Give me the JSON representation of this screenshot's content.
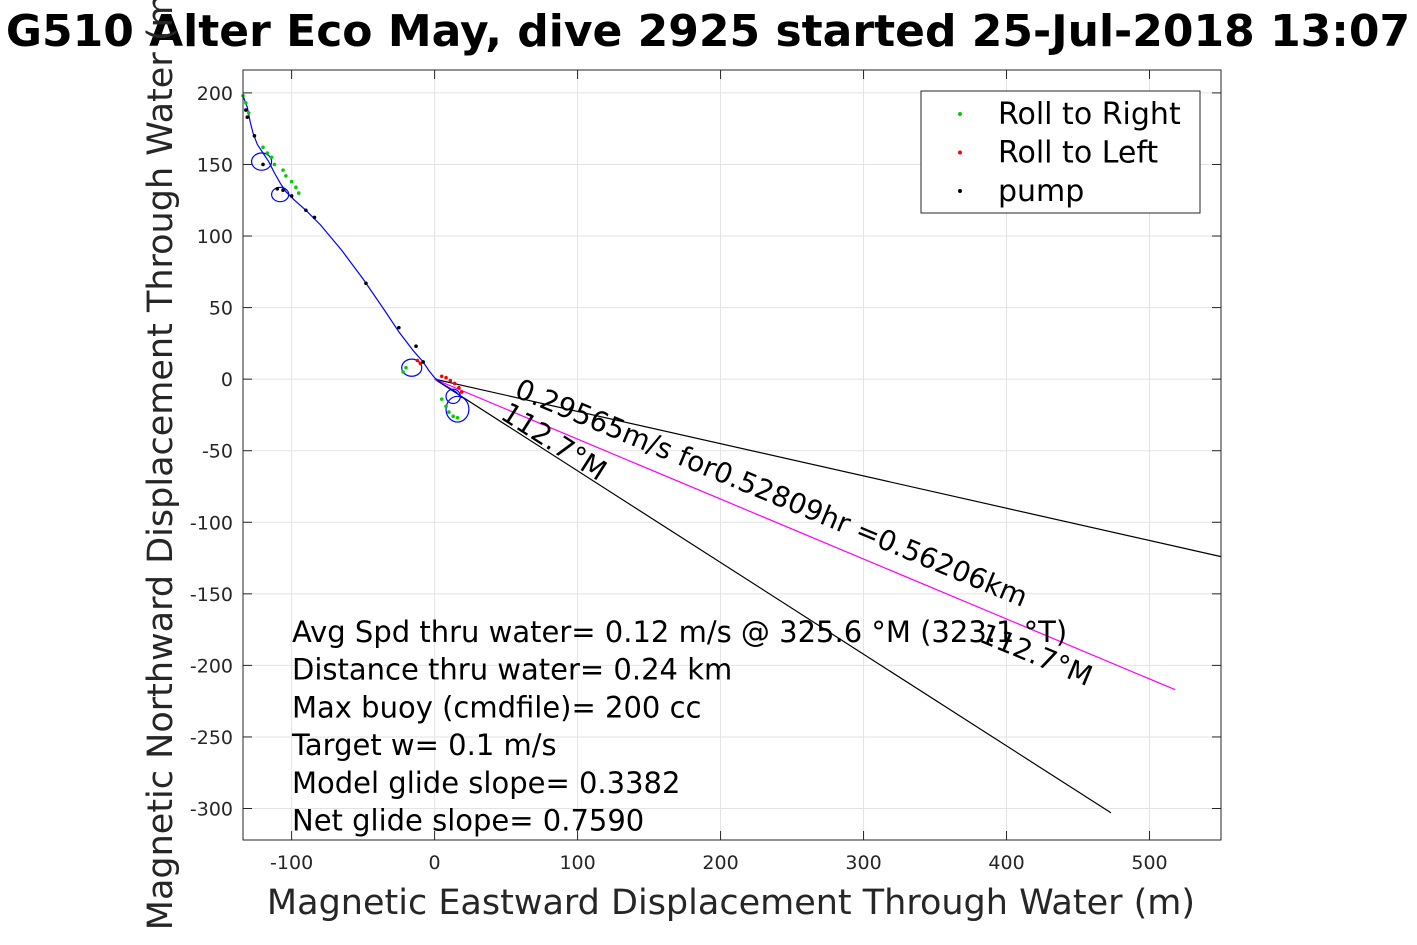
{
  "chart_data": {
    "type": "line",
    "title": "G510 Alter Eco May, dive 2925 started 25-Jul-2018 13:07",
    "xlabel": "Magnetic Eastward Displacement Through Water (m)",
    "ylabel": "Magnetic Northward Displacement Through Water (m)",
    "xlim": [
      -134,
      550
    ],
    "ylim": [
      -322,
      216
    ],
    "xticks": [
      -100,
      0,
      100,
      200,
      300,
      400,
      500
    ],
    "xticklabels": [
      "-100",
      "0",
      "100",
      "200",
      "300",
      "400",
      "500"
    ],
    "yticks": [
      200,
      150,
      100,
      50,
      0,
      -50,
      -100,
      -150,
      -200,
      -250,
      -300
    ],
    "yticklabels": [
      "200",
      "150",
      "100",
      "50",
      "0",
      "-50",
      "-100",
      "-150",
      "-200",
      "-250",
      "-300"
    ],
    "grid": true,
    "legend_position": "top-right",
    "legend": [
      {
        "label": "Roll to Right",
        "color": "#00cc00"
      },
      {
        "label": "Roll to Left",
        "color": "#ff0000"
      },
      {
        "label": "pump",
        "color": "#000000"
      }
    ],
    "track": {
      "color": "#0000ff",
      "points": [
        [
          -134,
          198
        ],
        [
          -131,
          190
        ],
        [
          -129,
          180
        ],
        [
          -127,
          172
        ],
        [
          -124,
          164
        ],
        [
          -120,
          158
        ],
        [
          -116,
          152
        ],
        [
          -112,
          144
        ],
        [
          -108,
          137
        ],
        [
          -104,
          131
        ],
        [
          -98,
          125
        ],
        [
          -90,
          118
        ],
        [
          -80,
          108
        ],
        [
          -65,
          90
        ],
        [
          -50,
          70
        ],
        [
          -35,
          48
        ],
        [
          -25,
          33
        ],
        [
          -15,
          20
        ],
        [
          -8,
          12
        ],
        [
          -4,
          6
        ],
        [
          0,
          1
        ],
        [
          5,
          -3
        ],
        [
          10,
          -6
        ],
        [
          15,
          -9
        ],
        [
          19,
          -13
        ]
      ]
    },
    "loops": [
      {
        "cx": -121,
        "cy": 152,
        "rx": 7,
        "ry": 6
      },
      {
        "cx": -108,
        "cy": 129,
        "rx": 6,
        "ry": 5
      },
      {
        "cx": -16,
        "cy": 8,
        "rx": 7,
        "ry": 6
      },
      {
        "cx": 16,
        "cy": -21,
        "rx": 8,
        "ry": 9
      },
      {
        "cx": 13,
        "cy": -12,
        "rx": 5,
        "ry": 5
      }
    ],
    "roll_right_points": [
      [
        -134,
        198
      ],
      [
        -132,
        193
      ],
      [
        -130,
        186
      ],
      [
        -120,
        162
      ],
      [
        -117,
        158
      ],
      [
        -114,
        155
      ],
      [
        -112,
        150
      ],
      [
        -106,
        146
      ],
      [
        -104,
        142
      ],
      [
        -100,
        138
      ],
      [
        -97,
        134
      ],
      [
        -95,
        130
      ],
      [
        -20,
        8
      ],
      [
        -22,
        5
      ],
      [
        5,
        -14
      ],
      [
        8,
        -19
      ],
      [
        10,
        -23
      ],
      [
        13,
        -26
      ],
      [
        16,
        -27
      ]
    ],
    "roll_left_points": [
      [
        -12,
        13
      ],
      [
        -10,
        11
      ],
      [
        5,
        2
      ],
      [
        8,
        1
      ],
      [
        11,
        -1
      ],
      [
        14,
        -3
      ],
      [
        17,
        -6
      ],
      [
        19,
        -9
      ]
    ],
    "pump_points": [
      [
        -132,
        188
      ],
      [
        -131,
        183
      ],
      [
        -126,
        170
      ],
      [
        -120,
        150
      ],
      [
        -110,
        133
      ],
      [
        -106,
        132
      ],
      [
        -100,
        128
      ],
      [
        -90,
        118
      ],
      [
        -84,
        113
      ],
      [
        -48,
        67
      ],
      [
        -25,
        36
      ],
      [
        -13,
        23
      ],
      [
        -8,
        12
      ]
    ],
    "glide_lines": [
      {
        "from": [
          0,
          0
        ],
        "to": [
          550,
          -124
        ],
        "color": "#000000"
      },
      {
        "from": [
          0,
          0
        ],
        "to": [
          473,
          -303
        ],
        "color": "#000000"
      },
      {
        "from": [
          0,
          0
        ],
        "to": [
          518,
          -217
        ],
        "color": "#ff00ff"
      }
    ],
    "segment_labels": [
      {
        "text": "0.29565m/s for0.52809hr =0.56206km",
        "at": [
          55,
          -12
        ],
        "angle_deg": 22.5
      },
      {
        "text": "112.7°M",
        "at": [
          45,
          -27
        ],
        "angle_deg": 32.6
      },
      {
        "text": "112.7°M",
        "at": [
          380,
          -183
        ],
        "angle_deg": 22.5
      }
    ],
    "annotations": [
      "Avg Spd thru water=  0.12 m/s @ 325.6 °M (323.1 °T)",
      "Distance thru water=  0.24 km",
      "Max buoy (cmdfile)= 200 cc",
      "Target w= 0.1 m/s",
      "Model glide slope= 0.3382",
      "Net glide slope= 0.7590"
    ]
  }
}
